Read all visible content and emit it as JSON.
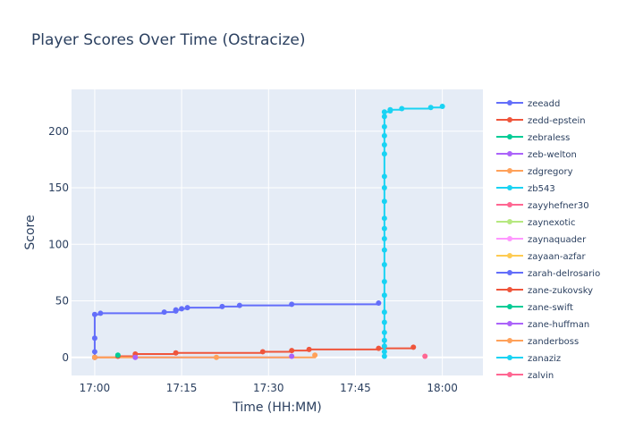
{
  "chart_data": {
    "type": "line",
    "title": "Player Scores Over Time (Ostracize)",
    "xlabel": "Time (HH:MM)",
    "ylabel": "Score",
    "xlim": [
      "16:56",
      "18:07"
    ],
    "ylim": [
      -16,
      237
    ],
    "x_ticks": [
      "17:00",
      "17:15",
      "17:30",
      "17:45",
      "18:00"
    ],
    "y_ticks": [
      0,
      50,
      100,
      150,
      200
    ],
    "grid": true,
    "legend_position": "right",
    "series": [
      {
        "name": "zeeadd",
        "color": "#636efa",
        "points": [
          [
            "17:00",
            0
          ],
          [
            "17:00",
            5
          ],
          [
            "17:00",
            17
          ],
          [
            "17:00",
            38
          ],
          [
            "17:01",
            39
          ],
          [
            "17:12",
            40
          ],
          [
            "17:14",
            41
          ],
          [
            "17:14",
            42
          ],
          [
            "17:15",
            43
          ],
          [
            "17:16",
            44
          ],
          [
            "17:22",
            45
          ],
          [
            "17:25",
            46
          ],
          [
            "17:34",
            47
          ],
          [
            "17:49",
            48
          ]
        ]
      },
      {
        "name": "zedd-epstein",
        "color": "#ef553b",
        "points": [
          [
            "17:00",
            0
          ],
          [
            "17:04",
            1
          ],
          [
            "17:07",
            3
          ],
          [
            "17:14",
            4
          ],
          [
            "17:29",
            5
          ],
          [
            "17:34",
            6
          ],
          [
            "17:37",
            7
          ],
          [
            "17:49",
            8
          ],
          [
            "17:55",
            9
          ]
        ]
      },
      {
        "name": "zebraless",
        "color": "#00cc96",
        "points": [
          [
            "17:04",
            2
          ]
        ]
      },
      {
        "name": "zeb-welton",
        "color": "#ab63fa",
        "points": [
          [
            "17:07",
            0
          ],
          [
            "17:34",
            1
          ]
        ]
      },
      {
        "name": "zdgregory",
        "color": "#ffa15a",
        "points": [
          [
            "17:00",
            0
          ],
          [
            "17:21",
            0
          ],
          [
            "17:38",
            2
          ]
        ]
      },
      {
        "name": "zb543",
        "color": "#19d3f3",
        "points": [
          [
            "17:50",
            1
          ],
          [
            "17:50",
            5
          ],
          [
            "17:50",
            10
          ],
          [
            "17:50",
            15
          ],
          [
            "17:50",
            22
          ],
          [
            "17:50",
            31
          ],
          [
            "17:50",
            40
          ],
          [
            "17:50",
            55
          ],
          [
            "17:50",
            67
          ],
          [
            "17:50",
            82
          ],
          [
            "17:50",
            95
          ],
          [
            "17:50",
            105
          ],
          [
            "17:50",
            114
          ],
          [
            "17:50",
            123
          ],
          [
            "17:50",
            138
          ],
          [
            "17:50",
            150
          ],
          [
            "17:50",
            160
          ],
          [
            "17:50",
            180
          ],
          [
            "17:50",
            188
          ],
          [
            "17:50",
            196
          ],
          [
            "17:50",
            204
          ],
          [
            "17:50",
            213
          ],
          [
            "17:50",
            217
          ],
          [
            "17:51",
            218
          ],
          [
            "17:51",
            219
          ],
          [
            "17:53",
            220
          ],
          [
            "17:58",
            221
          ],
          [
            "18:00",
            222
          ]
        ]
      },
      {
        "name": "zayyhefner30",
        "color": "#ff6692",
        "points": [
          [
            "17:57",
            1
          ]
        ]
      },
      {
        "name": "zaynexotic",
        "color": "#b6e880",
        "points": []
      },
      {
        "name": "zaynaquader",
        "color": "#ff97ff",
        "points": []
      },
      {
        "name": "zayaan-azfar",
        "color": "#fecb52",
        "points": []
      },
      {
        "name": "zarah-delrosario",
        "color": "#636efa",
        "points": []
      },
      {
        "name": "zane-zukovsky",
        "color": "#ef553b",
        "points": []
      },
      {
        "name": "zane-swift",
        "color": "#00cc96",
        "points": []
      },
      {
        "name": "zane-huffman",
        "color": "#ab63fa",
        "points": []
      },
      {
        "name": "zanderboss",
        "color": "#ffa15a",
        "points": []
      },
      {
        "name": "zanaziz",
        "color": "#19d3f3",
        "points": []
      },
      {
        "name": "zalvin",
        "color": "#ff6692",
        "points": []
      }
    ]
  }
}
